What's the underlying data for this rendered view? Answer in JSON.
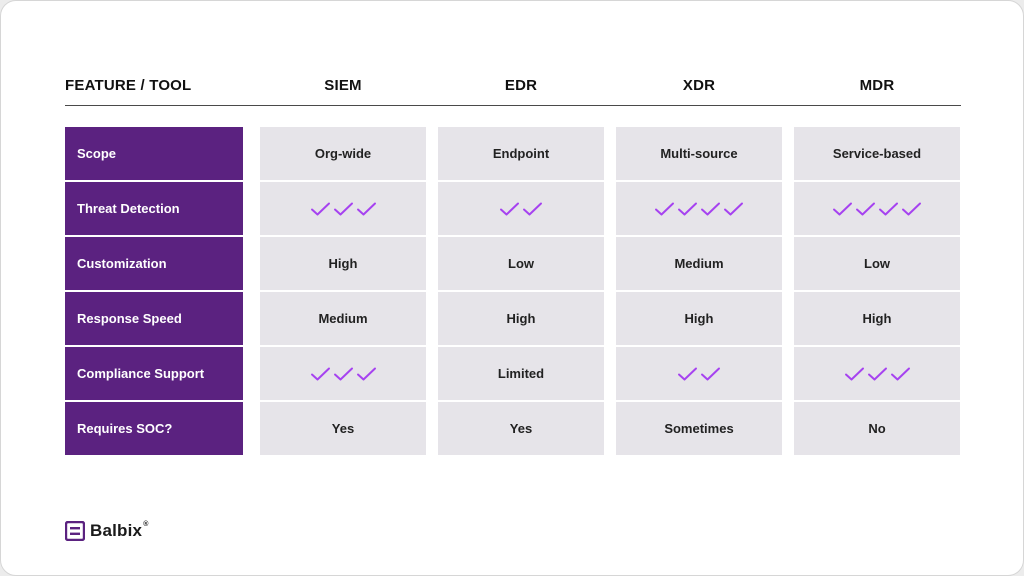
{
  "header": {
    "feature_label": "FEATURE / TOOL",
    "columns": [
      "SIEM",
      "EDR",
      "XDR",
      "MDR"
    ]
  },
  "rows": [
    {
      "label": "Scope",
      "cells": [
        {
          "text": "Org-wide"
        },
        {
          "text": "Endpoint"
        },
        {
          "text": "Multi-source"
        },
        {
          "text": "Service-based"
        }
      ]
    },
    {
      "label": "Threat Detection",
      "cells": [
        {
          "checks": 3
        },
        {
          "checks": 2
        },
        {
          "checks": 4
        },
        {
          "checks": 4
        }
      ]
    },
    {
      "label": "Customization",
      "cells": [
        {
          "text": "High"
        },
        {
          "text": "Low"
        },
        {
          "text": "Medium"
        },
        {
          "text": "Low"
        }
      ]
    },
    {
      "label": "Response Speed",
      "cells": [
        {
          "text": "Medium"
        },
        {
          "text": "High"
        },
        {
          "text": "High"
        },
        {
          "text": "High"
        }
      ]
    },
    {
      "label": "Compliance Support",
      "cells": [
        {
          "checks": 3
        },
        {
          "text": "Limited"
        },
        {
          "checks": 2
        },
        {
          "checks": 3
        }
      ]
    },
    {
      "label": "Requires SOC?",
      "cells": [
        {
          "text": "Yes"
        },
        {
          "text": "Yes"
        },
        {
          "text": "Sometimes"
        },
        {
          "text": "No"
        }
      ]
    }
  ],
  "logo": {
    "text": "Balbix",
    "mark": "®"
  },
  "colors": {
    "label_bg": "#5b2280",
    "cell_bg": "#e6e4e9",
    "check": "#a642f0"
  },
  "icons": {
    "check": "check-icon",
    "logo": "balbix-logo-icon"
  }
}
